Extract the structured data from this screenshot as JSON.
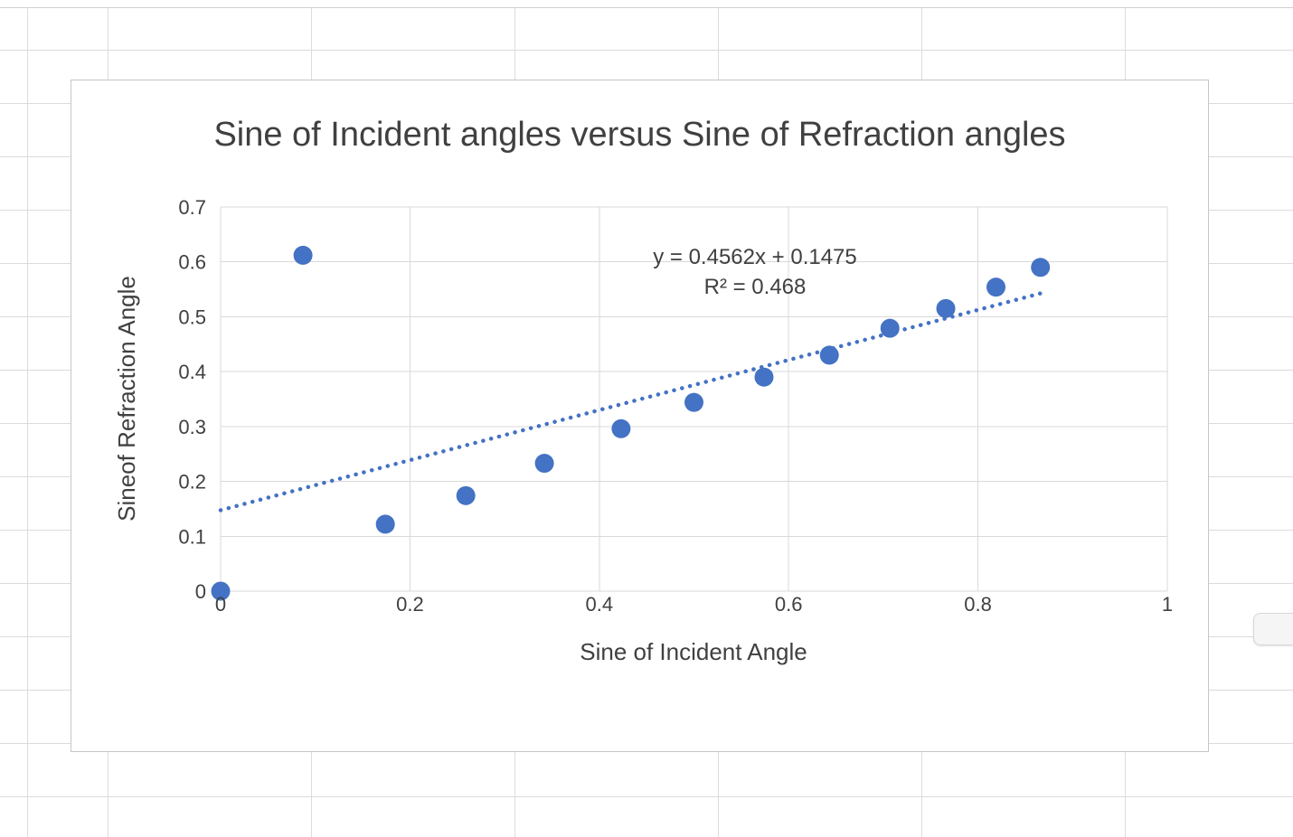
{
  "chart_data": {
    "type": "scatter",
    "title": "Sine of Incident angles versus Sine of Refraction angles",
    "xlabel": "Sine of Incident Angle",
    "ylabel": "Sineof Refraction Angle",
    "xlim": [
      0,
      1
    ],
    "ylim": [
      0,
      0.7
    ],
    "x_ticks": [
      0,
      0.2,
      0.4,
      0.6,
      0.8,
      1
    ],
    "y_ticks": [
      0,
      0.1,
      0.2,
      0.3,
      0.4,
      0.5,
      0.6,
      0.7
    ],
    "grid": true,
    "legend": false,
    "marker_color": "#4472C4",
    "trendline_color": "#4472C4",
    "points": [
      [
        0,
        0
      ],
      [
        0.087,
        0.612
      ],
      [
        0.174,
        0.122
      ],
      [
        0.259,
        0.174
      ],
      [
        0.342,
        0.233
      ],
      [
        0.423,
        0.296
      ],
      [
        0.5,
        0.344
      ],
      [
        0.574,
        0.39
      ],
      [
        0.643,
        0.43
      ],
      [
        0.707,
        0.479
      ],
      [
        0.766,
        0.515
      ],
      [
        0.819,
        0.554
      ],
      [
        0.866,
        0.59
      ]
    ],
    "trendline": {
      "style": "dotted",
      "slope": 0.4562,
      "intercept": 0.1475,
      "x_start": 0,
      "x_end": 0.87,
      "equation_label": "y = 0.4562x + 0.1475",
      "r_squared_label": "R² = 0.468"
    }
  }
}
